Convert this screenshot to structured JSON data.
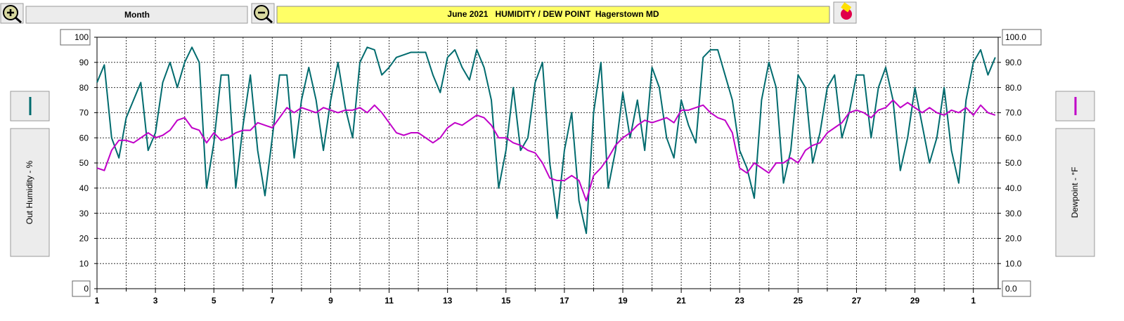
{
  "controls": {
    "period": "Month"
  },
  "chart_data": {
    "type": "line",
    "title": "June 2021   HUMIDITY / DEW POINT  Hagerstown MD",
    "x": [
      1,
      1.25,
      1.5,
      1.75,
      2,
      2.25,
      2.5,
      2.75,
      3,
      3.25,
      3.5,
      3.75,
      4,
      4.25,
      4.5,
      4.75,
      5,
      5.25,
      5.5,
      5.75,
      6,
      6.25,
      6.5,
      6.75,
      7,
      7.25,
      7.5,
      7.75,
      8,
      8.25,
      8.5,
      8.75,
      9,
      9.25,
      9.5,
      9.75,
      10,
      10.25,
      10.5,
      10.75,
      11,
      11.25,
      11.5,
      11.75,
      12,
      12.25,
      12.5,
      12.75,
      13,
      13.25,
      13.5,
      13.75,
      14,
      14.25,
      14.5,
      14.75,
      15,
      15.25,
      15.5,
      15.75,
      16,
      16.25,
      16.5,
      16.75,
      17,
      17.25,
      17.5,
      17.75,
      18,
      18.25,
      18.5,
      18.75,
      19,
      19.25,
      19.5,
      19.75,
      20,
      20.25,
      20.5,
      20.75,
      21,
      21.25,
      21.5,
      21.75,
      22,
      22.25,
      22.5,
      22.75,
      23,
      23.25,
      23.5,
      23.75,
      24,
      24.25,
      24.5,
      24.75,
      25,
      25.25,
      25.5,
      25.75,
      26,
      26.25,
      26.5,
      26.75,
      27,
      27.25,
      27.5,
      27.75,
      28,
      28.25,
      28.5,
      28.75,
      29,
      29.25,
      29.5,
      29.75,
      30,
      30.25,
      30.5,
      30.75,
      31,
      31.25,
      31.5,
      31.75
    ],
    "series": [
      {
        "name": "Out Humidity - %",
        "color": "#006b6e",
        "values": [
          82,
          89,
          60,
          52,
          68,
          75,
          82,
          55,
          62,
          82,
          90,
          80,
          90,
          96,
          90,
          40,
          58,
          85,
          85,
          40,
          65,
          85,
          55,
          37,
          60,
          85,
          85,
          52,
          75,
          88,
          75,
          55,
          75,
          90,
          72,
          60,
          90,
          96,
          95,
          85,
          88,
          92,
          93,
          94,
          94,
          94,
          85,
          78,
          92,
          95,
          88,
          83,
          95,
          88,
          75,
          40,
          55,
          80,
          55,
          60,
          82,
          90,
          50,
          28,
          55,
          70,
          35,
          22,
          70,
          90,
          40,
          55,
          78,
          60,
          75,
          55,
          88,
          80,
          60,
          52,
          75,
          65,
          58,
          92,
          95,
          95,
          85,
          75,
          55,
          48,
          36,
          75,
          90,
          80,
          42,
          55,
          85,
          80,
          50,
          62,
          80,
          85,
          60,
          70,
          85,
          85,
          60,
          80,
          88,
          75,
          47,
          60,
          80,
          65,
          50,
          60,
          80,
          55,
          42,
          75,
          90,
          95,
          85,
          92
        ]
      },
      {
        "name": "Dewpoint - °F",
        "color": "#c000c8",
        "axis": "y2",
        "values": [
          48,
          47,
          55,
          59,
          59,
          58,
          60,
          62,
          60,
          61,
          63,
          67,
          68,
          64,
          63,
          58,
          62,
          59,
          60,
          62,
          63,
          63,
          66,
          65,
          64,
          68,
          72,
          70,
          72,
          71,
          70,
          72,
          71,
          70,
          71,
          71,
          72,
          70,
          73,
          70,
          66,
          62,
          61,
          62,
          62,
          60,
          58,
          60,
          64,
          66,
          65,
          67,
          69,
          68,
          65,
          60,
          60,
          58,
          57,
          55,
          54,
          50,
          44,
          43,
          43,
          45,
          43,
          35,
          45,
          48,
          52,
          57,
          60,
          62,
          65,
          67,
          66,
          67,
          68,
          66,
          71,
          71,
          72,
          73,
          70,
          68,
          67,
          62,
          48,
          46,
          50,
          48,
          46,
          50,
          50,
          52,
          50,
          55,
          57,
          58,
          62,
          64,
          66,
          70,
          71,
          70,
          68,
          71,
          72,
          75,
          72,
          74,
          72,
          70,
          72,
          70,
          69,
          71,
          70,
          72,
          69,
          73,
          70,
          69
        ]
      }
    ],
    "xlim": [
      1,
      31.85
    ],
    "xticks": [
      1,
      3,
      5,
      7,
      9,
      11,
      13,
      15,
      17,
      19,
      21,
      23,
      25,
      27,
      29,
      {
        "value": 31,
        "label": "1"
      }
    ],
    "xminor": [
      2,
      4,
      6,
      8,
      10,
      12,
      14,
      16,
      18,
      20,
      22,
      24,
      26,
      28,
      30
    ],
    "ylim": [
      0,
      100
    ],
    "yticks": [
      0,
      10,
      20,
      30,
      40,
      50,
      60,
      70,
      80,
      90,
      100
    ],
    "y2lim": [
      0,
      100
    ],
    "y2ticks": [
      {
        "value": 0,
        "label": "0.0"
      },
      {
        "value": 10,
        "label": "10.0"
      },
      {
        "value": 20,
        "label": "20.0"
      },
      {
        "value": 30,
        "label": "30.0"
      },
      {
        "value": 40,
        "label": "40.0"
      },
      {
        "value": 50,
        "label": "50.0"
      },
      {
        "value": 60,
        "label": "60.0"
      },
      {
        "value": 70,
        "label": "70.0"
      },
      {
        "value": 80,
        "label": "80.0"
      },
      {
        "value": 90,
        "label": "90.0"
      },
      {
        "value": 100,
        "label": "100.0"
      }
    ],
    "grid": true
  }
}
